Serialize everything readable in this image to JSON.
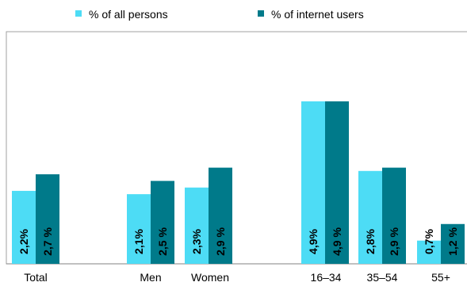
{
  "chart_data": {
    "type": "bar",
    "categories": [
      "Total",
      "Men",
      "Women",
      "16–34",
      "35–54",
      "55+"
    ],
    "series": [
      {
        "name": "% of all persons",
        "color": "#4DDCF5",
        "values": [
          2.2,
          2.1,
          2.3,
          4.9,
          2.8,
          0.7
        ],
        "labels": [
          "2,2%",
          "2,1%",
          "2,3%",
          "4,9%",
          "2,8%",
          "0,7%"
        ]
      },
      {
        "name": "% of internet users",
        "color": "#007A8A",
        "values": [
          2.7,
          2.5,
          2.9,
          4.9,
          2.9,
          1.2
        ],
        "labels": [
          "2,7 %",
          "2,5 %",
          "2,9 %",
          "4,9 %",
          "2,9 %",
          "1,2 %"
        ]
      }
    ],
    "ylim": [
      0,
      7.0
    ],
    "grid": false,
    "legend_position": "top"
  }
}
